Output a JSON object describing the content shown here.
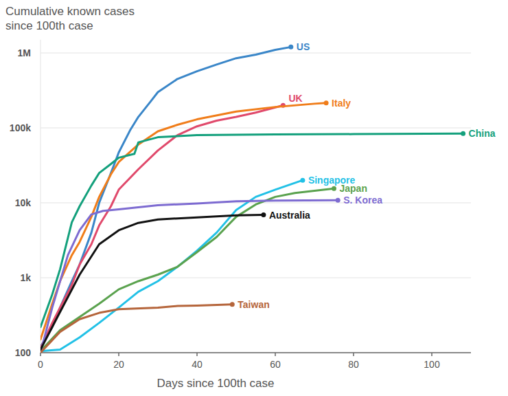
{
  "chart_data": {
    "type": "line",
    "title": "Cumulative known cases\nsince 100th case",
    "x_label": "Days since 100th case",
    "log": "y",
    "grid": true,
    "xlim": [
      0,
      110
    ],
    "xticks": [
      0,
      20,
      40,
      60,
      80,
      100
    ],
    "ylim": [
      100,
      1500000
    ],
    "yticks": [
      {
        "value": 100,
        "label": "100"
      },
      {
        "value": 1000,
        "label": "1k"
      },
      {
        "value": 10000,
        "label": "10k"
      },
      {
        "value": 100000,
        "label": "100k"
      },
      {
        "value": 1000000,
        "label": "1M"
      }
    ],
    "series": [
      {
        "name": "US",
        "color": "#3a86c8",
        "x": [
          0,
          3,
          5,
          8,
          10,
          13,
          15,
          18,
          20,
          23,
          25,
          28,
          30,
          35,
          40,
          45,
          50,
          55,
          60,
          64
        ],
        "values": [
          120,
          220,
          400,
          900,
          1500,
          4000,
          10000,
          25000,
          47000,
          95000,
          140000,
          220000,
          300000,
          450000,
          570000,
          700000,
          850000,
          950000,
          1100000,
          1200000
        ]
      },
      {
        "name": "UK",
        "color": "#e0496b",
        "x": [
          0,
          3,
          5,
          8,
          10,
          13,
          15,
          18,
          20,
          25,
          30,
          35,
          40,
          45,
          50,
          55,
          62
        ],
        "values": [
          115,
          250,
          400,
          800,
          1500,
          2800,
          5000,
          9000,
          15000,
          28000,
          50000,
          80000,
          105000,
          125000,
          140000,
          160000,
          200000
        ]
      },
      {
        "name": "Italy",
        "color": "#f07d1a",
        "x": [
          0,
          3,
          5,
          8,
          10,
          13,
          15,
          18,
          20,
          25,
          30,
          35,
          40,
          50,
          60,
          70,
          73
        ],
        "values": [
          150,
          450,
          900,
          2000,
          3000,
          6500,
          12000,
          24000,
          35000,
          60000,
          90000,
          110000,
          130000,
          165000,
          190000,
          210000,
          215000
        ]
      },
      {
        "name": "China",
        "color": "#13a07c",
        "x": [
          0,
          3,
          5,
          8,
          10,
          13,
          15,
          18,
          20,
          24,
          25,
          30,
          40,
          60,
          80,
          108
        ],
        "values": [
          220,
          600,
          1300,
          5500,
          9000,
          17000,
          25000,
          33000,
          40000,
          45000,
          64000,
          75000,
          80000,
          82000,
          82500,
          84000
        ]
      },
      {
        "name": "Singapore",
        "color": "#22c1e6",
        "x": [
          0,
          5,
          10,
          15,
          20,
          25,
          30,
          35,
          40,
          45,
          50,
          55,
          60,
          67
        ],
        "values": [
          105,
          110,
          160,
          250,
          400,
          650,
          900,
          1400,
          2300,
          4000,
          8000,
          12000,
          15000,
          20000
        ]
      },
      {
        "name": "Japan",
        "color": "#5aa24e",
        "x": [
          0,
          5,
          10,
          15,
          20,
          25,
          30,
          35,
          40,
          45,
          50,
          55,
          60,
          65,
          75
        ],
        "values": [
          105,
          200,
          300,
          450,
          700,
          900,
          1100,
          1400,
          2200,
          3500,
          6500,
          9500,
          12000,
          13500,
          15500
        ]
      },
      {
        "name": "S. Korea",
        "color": "#7d6bd1",
        "x": [
          0,
          3,
          7,
          10,
          13,
          16,
          20,
          25,
          30,
          40,
          50,
          60,
          76
        ],
        "values": [
          100,
          400,
          2000,
          4300,
          7000,
          7800,
          8200,
          8700,
          9300,
          9800,
          10500,
          10700,
          10800
        ]
      },
      {
        "name": "Australia",
        "color": "#111111",
        "x": [
          0,
          5,
          10,
          15,
          20,
          25,
          30,
          40,
          50,
          57
        ],
        "values": [
          110,
          350,
          1100,
          2800,
          4300,
          5400,
          6000,
          6400,
          6800,
          6900
        ]
      },
      {
        "name": "Taiwan",
        "color": "#b5653b",
        "x": [
          0,
          5,
          10,
          15,
          20,
          30,
          35,
          40,
          49
        ],
        "values": [
          100,
          190,
          280,
          340,
          380,
          400,
          420,
          425,
          440
        ]
      }
    ]
  }
}
